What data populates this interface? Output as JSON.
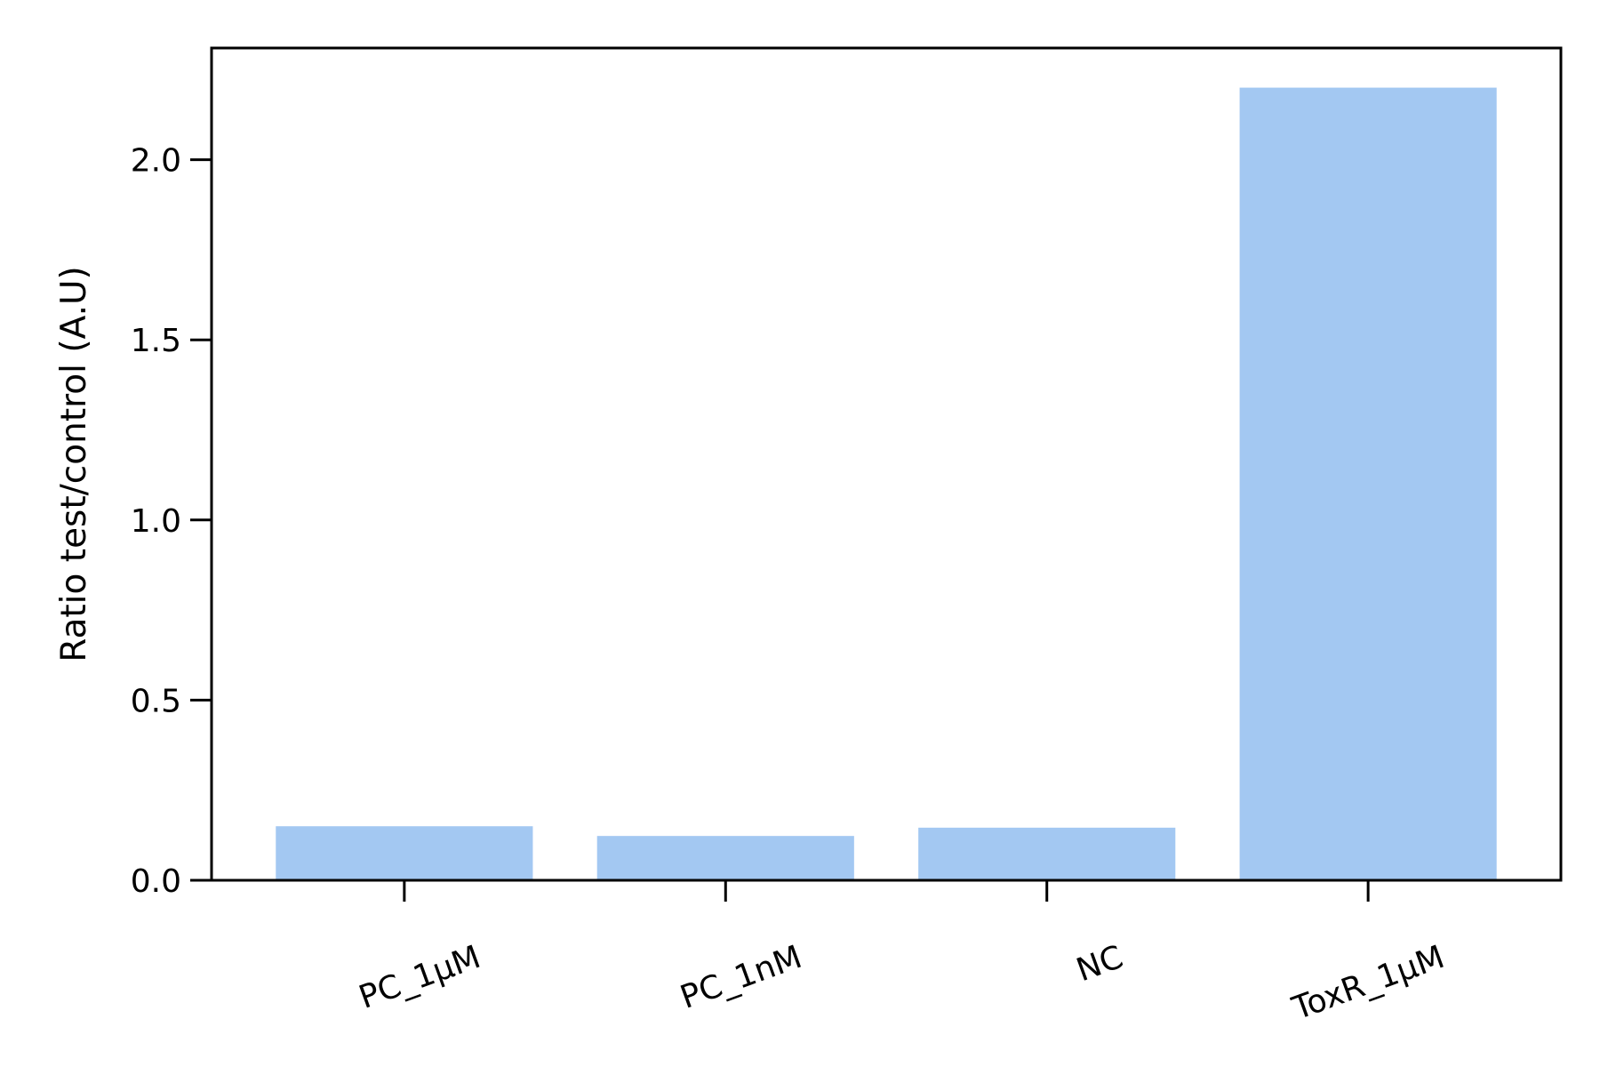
{
  "chart_data": {
    "type": "bar",
    "title": "",
    "xlabel": "",
    "ylabel": "Ratio test/control (A.U)",
    "categories": [
      "PC_1µM",
      "PC_1nM",
      "NC",
      "ToxR_1µM"
    ],
    "series": [
      {
        "values": [
          0.15,
          0.123,
          0.146,
          2.2
        ]
      }
    ],
    "ylim": [
      0.0,
      2.31
    ],
    "yticks": [
      0.0,
      0.5,
      1.0,
      1.5,
      2.0
    ],
    "ytick_labels": [
      "0.0",
      "0.5",
      "1.0",
      "1.5",
      "2.0"
    ],
    "grid": false,
    "legend": "none",
    "colors": {
      "bar": "#a3c8f2",
      "axis": "#000000",
      "background": "#ffffff"
    }
  }
}
